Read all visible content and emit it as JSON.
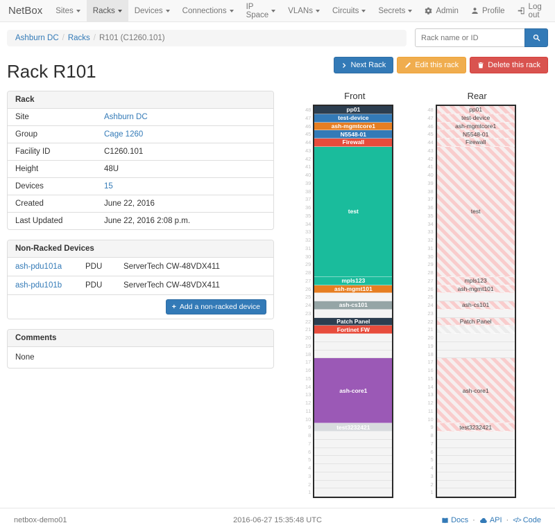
{
  "navbar": {
    "brand": "NetBox",
    "items": [
      {
        "label": "Sites",
        "active": false
      },
      {
        "label": "Racks",
        "active": true
      },
      {
        "label": "Devices",
        "active": false
      },
      {
        "label": "Connections",
        "active": false
      },
      {
        "label": "IP Space",
        "active": false
      },
      {
        "label": "VLANs",
        "active": false
      },
      {
        "label": "Circuits",
        "active": false
      },
      {
        "label": "Secrets",
        "active": false
      }
    ],
    "right": [
      {
        "icon": "gear-icon",
        "label": "Admin"
      },
      {
        "icon": "user-icon",
        "label": "Profile"
      },
      {
        "icon": "logout-icon",
        "label": "Log out"
      }
    ]
  },
  "breadcrumb": {
    "items": [
      {
        "label": "Ashburn DC",
        "link": true
      },
      {
        "label": "Racks",
        "link": true
      },
      {
        "label": "R101 (C1260.101)",
        "link": false
      }
    ]
  },
  "search": {
    "placeholder": "Rack name or ID"
  },
  "actions": {
    "next_label": "Next Rack",
    "edit_label": "Edit this rack",
    "delete_label": "Delete this rack"
  },
  "page_title": "Rack R101",
  "rack_panel": {
    "title": "Rack",
    "rows": [
      {
        "label": "Site",
        "value": "Ashburn DC",
        "link": true
      },
      {
        "label": "Group",
        "value": "Cage 1260",
        "link": true
      },
      {
        "label": "Facility ID",
        "value": "C1260.101",
        "link": false
      },
      {
        "label": "Height",
        "value": "48U",
        "link": false
      },
      {
        "label": "Devices",
        "value": "15",
        "link": true
      },
      {
        "label": "Created",
        "value": "June 22, 2016",
        "link": false
      },
      {
        "label": "Last Updated",
        "value": "June 22, 2016 2:08 p.m.",
        "link": false
      }
    ]
  },
  "nonracked_panel": {
    "title": "Non-Racked Devices",
    "devices": [
      {
        "name": "ash-pdu101a",
        "role": "PDU",
        "model": "ServerTech CW-48VDX411"
      },
      {
        "name": "ash-pdu101b",
        "role": "PDU",
        "model": "ServerTech CW-48VDX411"
      }
    ],
    "add_button": "Add a non-racked device"
  },
  "comments_panel": {
    "title": "Comments",
    "body": "None"
  },
  "racks": {
    "u_height": 48,
    "front": {
      "title": "Front",
      "units": [
        {
          "u": 48,
          "span": 1,
          "label": "pp01",
          "type": "device",
          "color": "#2c3e50"
        },
        {
          "u": 47,
          "span": 1,
          "label": "test-device",
          "type": "device",
          "color": "#337ab7"
        },
        {
          "u": 46,
          "span": 1,
          "label": "ash-mgmtcore1",
          "type": "device",
          "color": "#e67e22"
        },
        {
          "u": 45,
          "span": 1,
          "label": "N5548-01",
          "type": "device",
          "color": "#337ab7"
        },
        {
          "u": 44,
          "span": 1,
          "label": "Firewall",
          "type": "device",
          "color": "#e74c3c"
        },
        {
          "u": 43,
          "span": 16,
          "label": "test",
          "type": "device",
          "color": "#1abc9c"
        },
        {
          "u": 27,
          "span": 1,
          "label": "mpls123",
          "type": "device",
          "color": "#1abc9c"
        },
        {
          "u": 26,
          "span": 1,
          "label": "ash-mgmt101",
          "type": "device",
          "color": "#e67e22"
        },
        {
          "u": 25,
          "span": 1,
          "label": "",
          "type": "empty"
        },
        {
          "u": 24,
          "span": 1,
          "label": "ash-cs101",
          "type": "device",
          "color": "#95a5a6"
        },
        {
          "u": 23,
          "span": 1,
          "label": "",
          "type": "empty"
        },
        {
          "u": 22,
          "span": 1,
          "label": "Patch Panel",
          "type": "device",
          "color": "#2c3e50"
        },
        {
          "u": 21,
          "span": 1,
          "label": "Fortinet FW",
          "type": "device",
          "color": "#e74c3c"
        },
        {
          "u": 20,
          "span": 1,
          "label": "",
          "type": "empty"
        },
        {
          "u": 19,
          "span": 1,
          "label": "",
          "type": "empty"
        },
        {
          "u": 18,
          "span": 1,
          "label": "",
          "type": "empty"
        },
        {
          "u": 17,
          "span": 8,
          "label": "ash-core1",
          "type": "device",
          "color": "#9b59b6"
        },
        {
          "u": 9,
          "span": 1,
          "label": "test3232421",
          "type": "device",
          "color": "#d8dbde"
        },
        {
          "u": 8,
          "span": 1,
          "label": "",
          "type": "empty"
        },
        {
          "u": 7,
          "span": 1,
          "label": "",
          "type": "empty"
        },
        {
          "u": 6,
          "span": 1,
          "label": "",
          "type": "empty"
        },
        {
          "u": 5,
          "span": 1,
          "label": "",
          "type": "empty"
        },
        {
          "u": 4,
          "span": 1,
          "label": "",
          "type": "empty"
        },
        {
          "u": 3,
          "span": 1,
          "label": "",
          "type": "empty"
        },
        {
          "u": 2,
          "span": 1,
          "label": "",
          "type": "empty"
        },
        {
          "u": 1,
          "span": 1,
          "label": "",
          "type": "empty"
        }
      ]
    },
    "rear": {
      "title": "Rear",
      "units": [
        {
          "u": 48,
          "span": 1,
          "label": "pp01",
          "type": "stripes"
        },
        {
          "u": 47,
          "span": 1,
          "label": "test-device",
          "type": "stripes"
        },
        {
          "u": 46,
          "span": 1,
          "label": "ash-mgmtcore1",
          "type": "stripes"
        },
        {
          "u": 45,
          "span": 1,
          "label": "N5548-01",
          "type": "stripes"
        },
        {
          "u": 44,
          "span": 1,
          "label": "Firewall",
          "type": "stripes"
        },
        {
          "u": 43,
          "span": 16,
          "label": "test",
          "type": "stripes"
        },
        {
          "u": 27,
          "span": 1,
          "label": "mpls123",
          "type": "stripes"
        },
        {
          "u": 26,
          "span": 1,
          "label": "ash-mgmt101",
          "type": "stripes"
        },
        {
          "u": 25,
          "span": 1,
          "label": "",
          "type": "empty"
        },
        {
          "u": 24,
          "span": 1,
          "label": "ash-cs101",
          "type": "stripes"
        },
        {
          "u": 23,
          "span": 1,
          "label": "",
          "type": "empty"
        },
        {
          "u": 22,
          "span": 1,
          "label": "Patch Panel",
          "type": "stripes"
        },
        {
          "u": 21,
          "span": 1,
          "label": "",
          "type": "stripes-gray"
        },
        {
          "u": 20,
          "span": 1,
          "label": "",
          "type": "empty"
        },
        {
          "u": 19,
          "span": 1,
          "label": "",
          "type": "empty"
        },
        {
          "u": 18,
          "span": 1,
          "label": "",
          "type": "empty"
        },
        {
          "u": 17,
          "span": 8,
          "label": "ash-core1",
          "type": "stripes"
        },
        {
          "u": 9,
          "span": 1,
          "label": "test3232421",
          "type": "stripes"
        },
        {
          "u": 8,
          "span": 1,
          "label": "",
          "type": "empty"
        },
        {
          "u": 7,
          "span": 1,
          "label": "",
          "type": "empty"
        },
        {
          "u": 6,
          "span": 1,
          "label": "",
          "type": "empty"
        },
        {
          "u": 5,
          "span": 1,
          "label": "",
          "type": "empty"
        },
        {
          "u": 4,
          "span": 1,
          "label": "",
          "type": "empty"
        },
        {
          "u": 3,
          "span": 1,
          "label": "",
          "type": "empty"
        },
        {
          "u": 2,
          "span": 1,
          "label": "",
          "type": "empty"
        },
        {
          "u": 1,
          "span": 1,
          "label": "",
          "type": "empty"
        }
      ]
    }
  },
  "footer": {
    "hostname": "netbox-demo01",
    "timestamp": "2016-06-27 15:35:48 UTC",
    "links": [
      {
        "icon": "book-icon",
        "label": "Docs"
      },
      {
        "icon": "cloud-icon",
        "label": "API"
      },
      {
        "icon": "code-icon",
        "label": "Code"
      }
    ]
  },
  "colors": {
    "link": "#337ab7",
    "btn_primary": "#337ab7",
    "btn_warning": "#f0ad4e",
    "btn_danger": "#d9534f",
    "stripe_pink": "#f9cccc",
    "rack_empty": "#f4f4f4"
  }
}
